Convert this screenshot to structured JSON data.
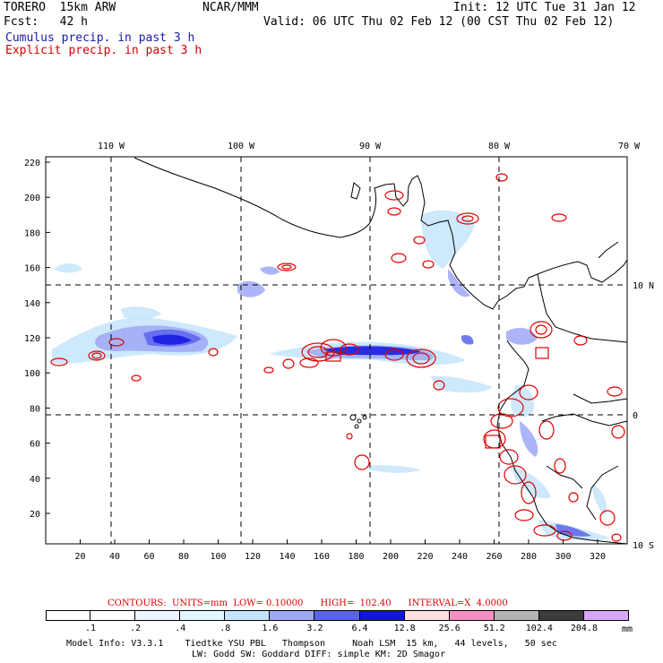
{
  "header": {
    "model": "TORERO  15km ARW",
    "org": "NCAR/MMM",
    "init": "Init: 12 UTC Tue 31 Jan 12",
    "fcst": "Fcst:   42 h",
    "valid": "Valid: 06 UTC Thu 02 Feb 12 (00 CST Thu 02 Feb 12)",
    "field1": "Cumulus precip. in past 3 h",
    "field2": "Explicit precip. in past 3 h"
  },
  "map": {
    "lon_labels": [
      "110 W",
      "100 W",
      "90 W",
      "80 W",
      "70 W"
    ],
    "lat_labels": [
      "10 N",
      "0",
      "10 S"
    ],
    "y_ticks": [
      "220",
      "200",
      "180",
      "160",
      "140",
      "120",
      "100",
      "80",
      "60",
      "40",
      "20"
    ],
    "x_ticks": [
      "20",
      "40",
      "60",
      "80",
      "100",
      "120",
      "140",
      "160",
      "180",
      "200",
      "220",
      "240",
      "260",
      "280",
      "300",
      "320"
    ]
  },
  "contours_line": "CONTOURS:  UNITS=mm  LOW= 0.10000      HIGH=  102.40      INTERVAL=X  4.0000",
  "colorbar": {
    "labels": [
      ".1",
      ".2",
      ".4",
      ".8",
      "1.6",
      "3.2",
      "6.4",
      "12.8",
      "25.6",
      "51.2",
      "102.4",
      "204.8"
    ],
    "unit": "mm",
    "colors": [
      "#ffffff",
      "#ffffff",
      "#eef3ff",
      "#e2f8ff",
      "#c6e4fc",
      "#9ea8f6",
      "#5a64ec",
      "#1414e0",
      "#fde0e0",
      "#f690c4",
      "#b4b4b4",
      "#3c3c3c",
      "#d8a8f8"
    ]
  },
  "footer": {
    "line1": "Model Info: V3.3.1    Tiedtke YSU PBL   Thompson     Noah LSM  15 km,   44 levels,   50 sec",
    "line2": "LW: Godd SW: Goddard DIFF: simple KM: 2D Smagor"
  }
}
